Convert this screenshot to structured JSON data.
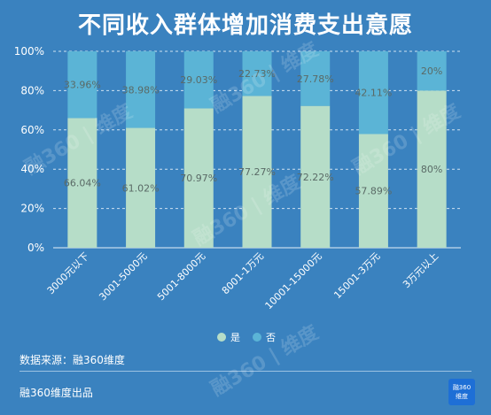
{
  "title": "不同收入群体增加消费支出意愿",
  "source_text": "数据来源：融360维度",
  "footer_text": "融360维度出品",
  "logo": {
    "line1": "融360",
    "line2": "维度"
  },
  "watermark": "融360 | 维度",
  "colors": {
    "background": "#3a82bf",
    "yes": "#b6ddc8",
    "no": "#5bb4d6"
  },
  "chart_data": {
    "type": "bar",
    "stacked": true,
    "title": "不同收入群体增加消费支出意愿",
    "categories": [
      "3000元以下",
      "3001-5000元",
      "5001-8000元",
      "8001-1万元",
      "10001-15000元",
      "15001-3万元",
      "3万元以上"
    ],
    "series": [
      {
        "name": "是",
        "values": [
          66.04,
          61.02,
          70.97,
          77.27,
          72.22,
          57.89,
          80
        ],
        "labels": [
          "66.04%",
          "61.02%",
          "70.97%",
          "77.27%",
          "72.22%",
          "57.89%",
          "80%"
        ]
      },
      {
        "name": "否",
        "values": [
          33.96,
          38.98,
          29.03,
          22.73,
          27.78,
          42.11,
          20
        ],
        "labels": [
          "33.96%",
          "38.98%",
          "29.03%",
          "22.73%",
          "27.78%",
          "42.11%",
          "20%"
        ]
      }
    ],
    "yticks": [
      "0%",
      "20%",
      "40%",
      "60%",
      "80%",
      "100%"
    ],
    "ylim": [
      0,
      100
    ],
    "grid": true,
    "legend_position": "bottom"
  }
}
